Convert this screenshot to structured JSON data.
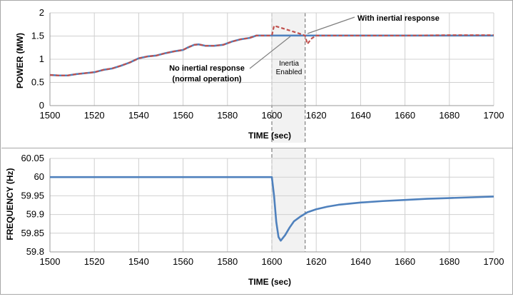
{
  "chart_data": [
    {
      "type": "line",
      "xlabel": "TIME (sec)",
      "ylabel": "POWER (MW)",
      "xlim": [
        1500,
        1700
      ],
      "ylim": [
        0,
        2
      ],
      "x_ticks": [
        "1500",
        "1520",
        "1540",
        "1560",
        "1580",
        "1600",
        "1620",
        "1640",
        "1660",
        "1680",
        "1700"
      ],
      "y_ticks": [
        "0",
        "0.5",
        "1",
        "1.5",
        "2"
      ],
      "grid": true,
      "series": [
        {
          "name": "No inertial response (normal operation)",
          "color": "#4f81bd",
          "style": "solid",
          "points": [
            [
              1500,
              0.66
            ],
            [
              1504,
              0.65
            ],
            [
              1508,
              0.65
            ],
            [
              1512,
              0.68
            ],
            [
              1516,
              0.7
            ],
            [
              1520,
              0.72
            ],
            [
              1524,
              0.77
            ],
            [
              1528,
              0.8
            ],
            [
              1532,
              0.86
            ],
            [
              1536,
              0.93
            ],
            [
              1540,
              1.02
            ],
            [
              1544,
              1.06
            ],
            [
              1548,
              1.08
            ],
            [
              1552,
              1.13
            ],
            [
              1556,
              1.17
            ],
            [
              1560,
              1.2
            ],
            [
              1562,
              1.25
            ],
            [
              1565,
              1.31
            ],
            [
              1567,
              1.32
            ],
            [
              1570,
              1.29
            ],
            [
              1574,
              1.29
            ],
            [
              1578,
              1.31
            ],
            [
              1582,
              1.38
            ],
            [
              1586,
              1.43
            ],
            [
              1590,
              1.46
            ],
            [
              1593,
              1.51
            ],
            [
              1600,
              1.51
            ],
            [
              1610,
              1.51
            ],
            [
              1620,
              1.51
            ],
            [
              1640,
              1.51
            ],
            [
              1660,
              1.51
            ],
            [
              1680,
              1.51
            ],
            [
              1700,
              1.51
            ]
          ]
        },
        {
          "name": "With inertial response",
          "color": "#c0504d",
          "style": "dashed",
          "points": [
            [
              1500,
              0.66
            ],
            [
              1504,
              0.65
            ],
            [
              1508,
              0.65
            ],
            [
              1512,
              0.68
            ],
            [
              1516,
              0.7
            ],
            [
              1520,
              0.72
            ],
            [
              1524,
              0.77
            ],
            [
              1528,
              0.8
            ],
            [
              1532,
              0.86
            ],
            [
              1536,
              0.93
            ],
            [
              1540,
              1.02
            ],
            [
              1544,
              1.06
            ],
            [
              1548,
              1.08
            ],
            [
              1552,
              1.13
            ],
            [
              1556,
              1.17
            ],
            [
              1560,
              1.2
            ],
            [
              1562,
              1.25
            ],
            [
              1565,
              1.31
            ],
            [
              1567,
              1.32
            ],
            [
              1570,
              1.29
            ],
            [
              1574,
              1.29
            ],
            [
              1578,
              1.31
            ],
            [
              1582,
              1.38
            ],
            [
              1586,
              1.43
            ],
            [
              1590,
              1.46
            ],
            [
              1593,
              1.51
            ],
            [
              1600,
              1.51
            ],
            [
              1601,
              1.72
            ],
            [
              1604,
              1.68
            ],
            [
              1608,
              1.62
            ],
            [
              1612,
              1.56
            ],
            [
              1615,
              1.51
            ],
            [
              1616,
              1.33
            ],
            [
              1618,
              1.45
            ],
            [
              1620,
              1.51
            ],
            [
              1640,
              1.51
            ],
            [
              1660,
              1.51
            ],
            [
              1680,
              1.52
            ],
            [
              1700,
              1.52
            ]
          ]
        }
      ],
      "annotations": {
        "top_right": "With inertial response",
        "left_line1": "No inertial response",
        "left_line2": "(normal operation)",
        "band_line1": "Inertia",
        "band_line2": "Enabled"
      },
      "highlight_band": [
        1600,
        1615
      ]
    },
    {
      "type": "line",
      "xlabel": "TIME (sec)",
      "ylabel": "FREQUENCY (Hz)",
      "xlim": [
        1500,
        1700
      ],
      "ylim": [
        59.8,
        60.05
      ],
      "x_ticks": [
        "1500",
        "1520",
        "1540",
        "1560",
        "1580",
        "1600",
        "1620",
        "1640",
        "1660",
        "1680",
        "1700"
      ],
      "y_ticks": [
        "59.8",
        "59.85",
        "59.9",
        "59.95",
        "60",
        "60.05"
      ],
      "grid": true,
      "series": [
        {
          "color": "#4f81bd",
          "style": "solid",
          "points": [
            [
              1500,
              60.0
            ],
            [
              1600,
              60.0
            ],
            [
              1601,
              59.95
            ],
            [
              1602,
              59.88
            ],
            [
              1603,
              59.84
            ],
            [
              1604,
              59.83
            ],
            [
              1606,
              59.845
            ],
            [
              1608,
              59.865
            ],
            [
              1610,
              59.882
            ],
            [
              1613,
              59.895
            ],
            [
              1616,
              59.906
            ],
            [
              1620,
              59.914
            ],
            [
              1625,
              59.921
            ],
            [
              1630,
              59.926
            ],
            [
              1640,
              59.932
            ],
            [
              1650,
              59.936
            ],
            [
              1660,
              59.939
            ],
            [
              1670,
              59.942
            ],
            [
              1680,
              59.944
            ],
            [
              1690,
              59.946
            ],
            [
              1700,
              59.948
            ]
          ]
        }
      ],
      "highlight_band": [
        1600,
        1615
      ]
    }
  ]
}
